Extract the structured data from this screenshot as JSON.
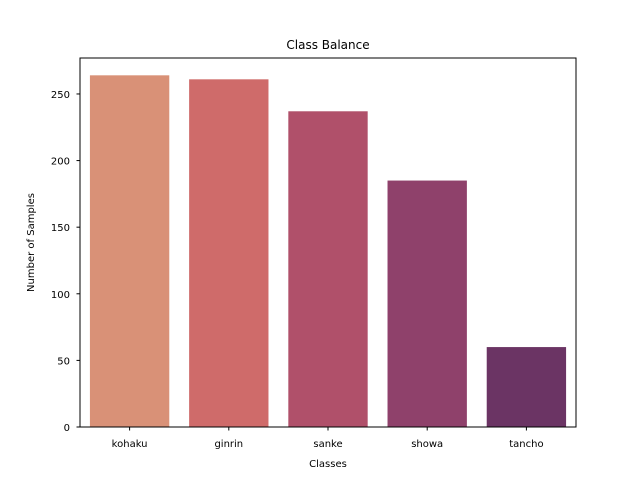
{
  "chart_data": {
    "type": "bar",
    "title": "Class Balance",
    "xlabel": "Classes",
    "ylabel": "Number of Samples",
    "categories": [
      "kohaku",
      "ginrin",
      "sanke",
      "showa",
      "tancho"
    ],
    "values": [
      264,
      261,
      237,
      185,
      60
    ],
    "colors": [
      "#d99177",
      "#cf6b6a",
      "#b0506a",
      "#8f416b",
      "#6b3464"
    ],
    "ylim": [
      0,
      277
    ],
    "yticks": [
      0,
      50,
      100,
      150,
      200,
      250
    ],
    "grid": false,
    "legend": "none"
  }
}
